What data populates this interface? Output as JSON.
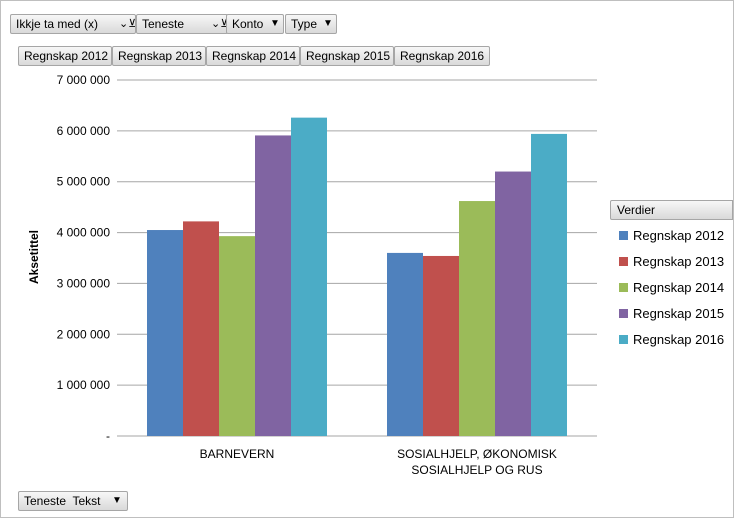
{
  "filters": {
    "items": [
      {
        "label": "Ikkje ta med (x)",
        "icon": "filter-dropdown-icon"
      },
      {
        "label": "Teneste",
        "icon": "filter-dropdown-icon"
      },
      {
        "label": "Konto",
        "icon": "dropdown-arrow-icon"
      },
      {
        "label": "Type",
        "icon": "dropdown-arrow-icon"
      }
    ]
  },
  "value_fields": [
    "Regnskap 2012",
    "Regnskap 2013",
    "Regnskap 2014",
    "Regnskap 2015",
    "Regnskap 2016"
  ],
  "axis_field": {
    "label": "Teneste  Tekst",
    "icon": "dropdown-arrow-icon"
  },
  "legend": {
    "title": "Verdier",
    "placement": "right"
  },
  "chart_data": {
    "type": "bar",
    "title": "",
    "xlabel": "",
    "ylabel": "Aksetittel",
    "ylim": [
      0,
      7000000
    ],
    "yticks": [
      {
        "value": 0,
        "label": "-"
      },
      {
        "value": 1000000,
        "label": "1 000 000"
      },
      {
        "value": 2000000,
        "label": "2 000 000"
      },
      {
        "value": 3000000,
        "label": "3 000 000"
      },
      {
        "value": 4000000,
        "label": "4 000 000"
      },
      {
        "value": 5000000,
        "label": "5 000 000"
      },
      {
        "value": 6000000,
        "label": "6 000 000"
      },
      {
        "value": 7000000,
        "label": "7 000 000"
      }
    ],
    "grid": true,
    "categories": [
      [
        "BARNEVERN"
      ],
      [
        "SOSIALHJELP, ØKONOMISK",
        "SOSIALHJELP OG RUS"
      ]
    ],
    "series": [
      {
        "name": "Regnskap 2012",
        "color": "#4f81bd",
        "values": [
          4050000,
          3600000
        ]
      },
      {
        "name": "Regnskap 2013",
        "color": "#c0504d",
        "values": [
          4220000,
          3540000
        ]
      },
      {
        "name": "Regnskap 2014",
        "color": "#9bbb59",
        "values": [
          3930000,
          4620000
        ]
      },
      {
        "name": "Regnskap 2015",
        "color": "#8064a2",
        "values": [
          5910000,
          5200000
        ]
      },
      {
        "name": "Regnskap 2016",
        "color": "#4bacc6",
        "values": [
          6260000,
          5940000
        ]
      }
    ]
  }
}
